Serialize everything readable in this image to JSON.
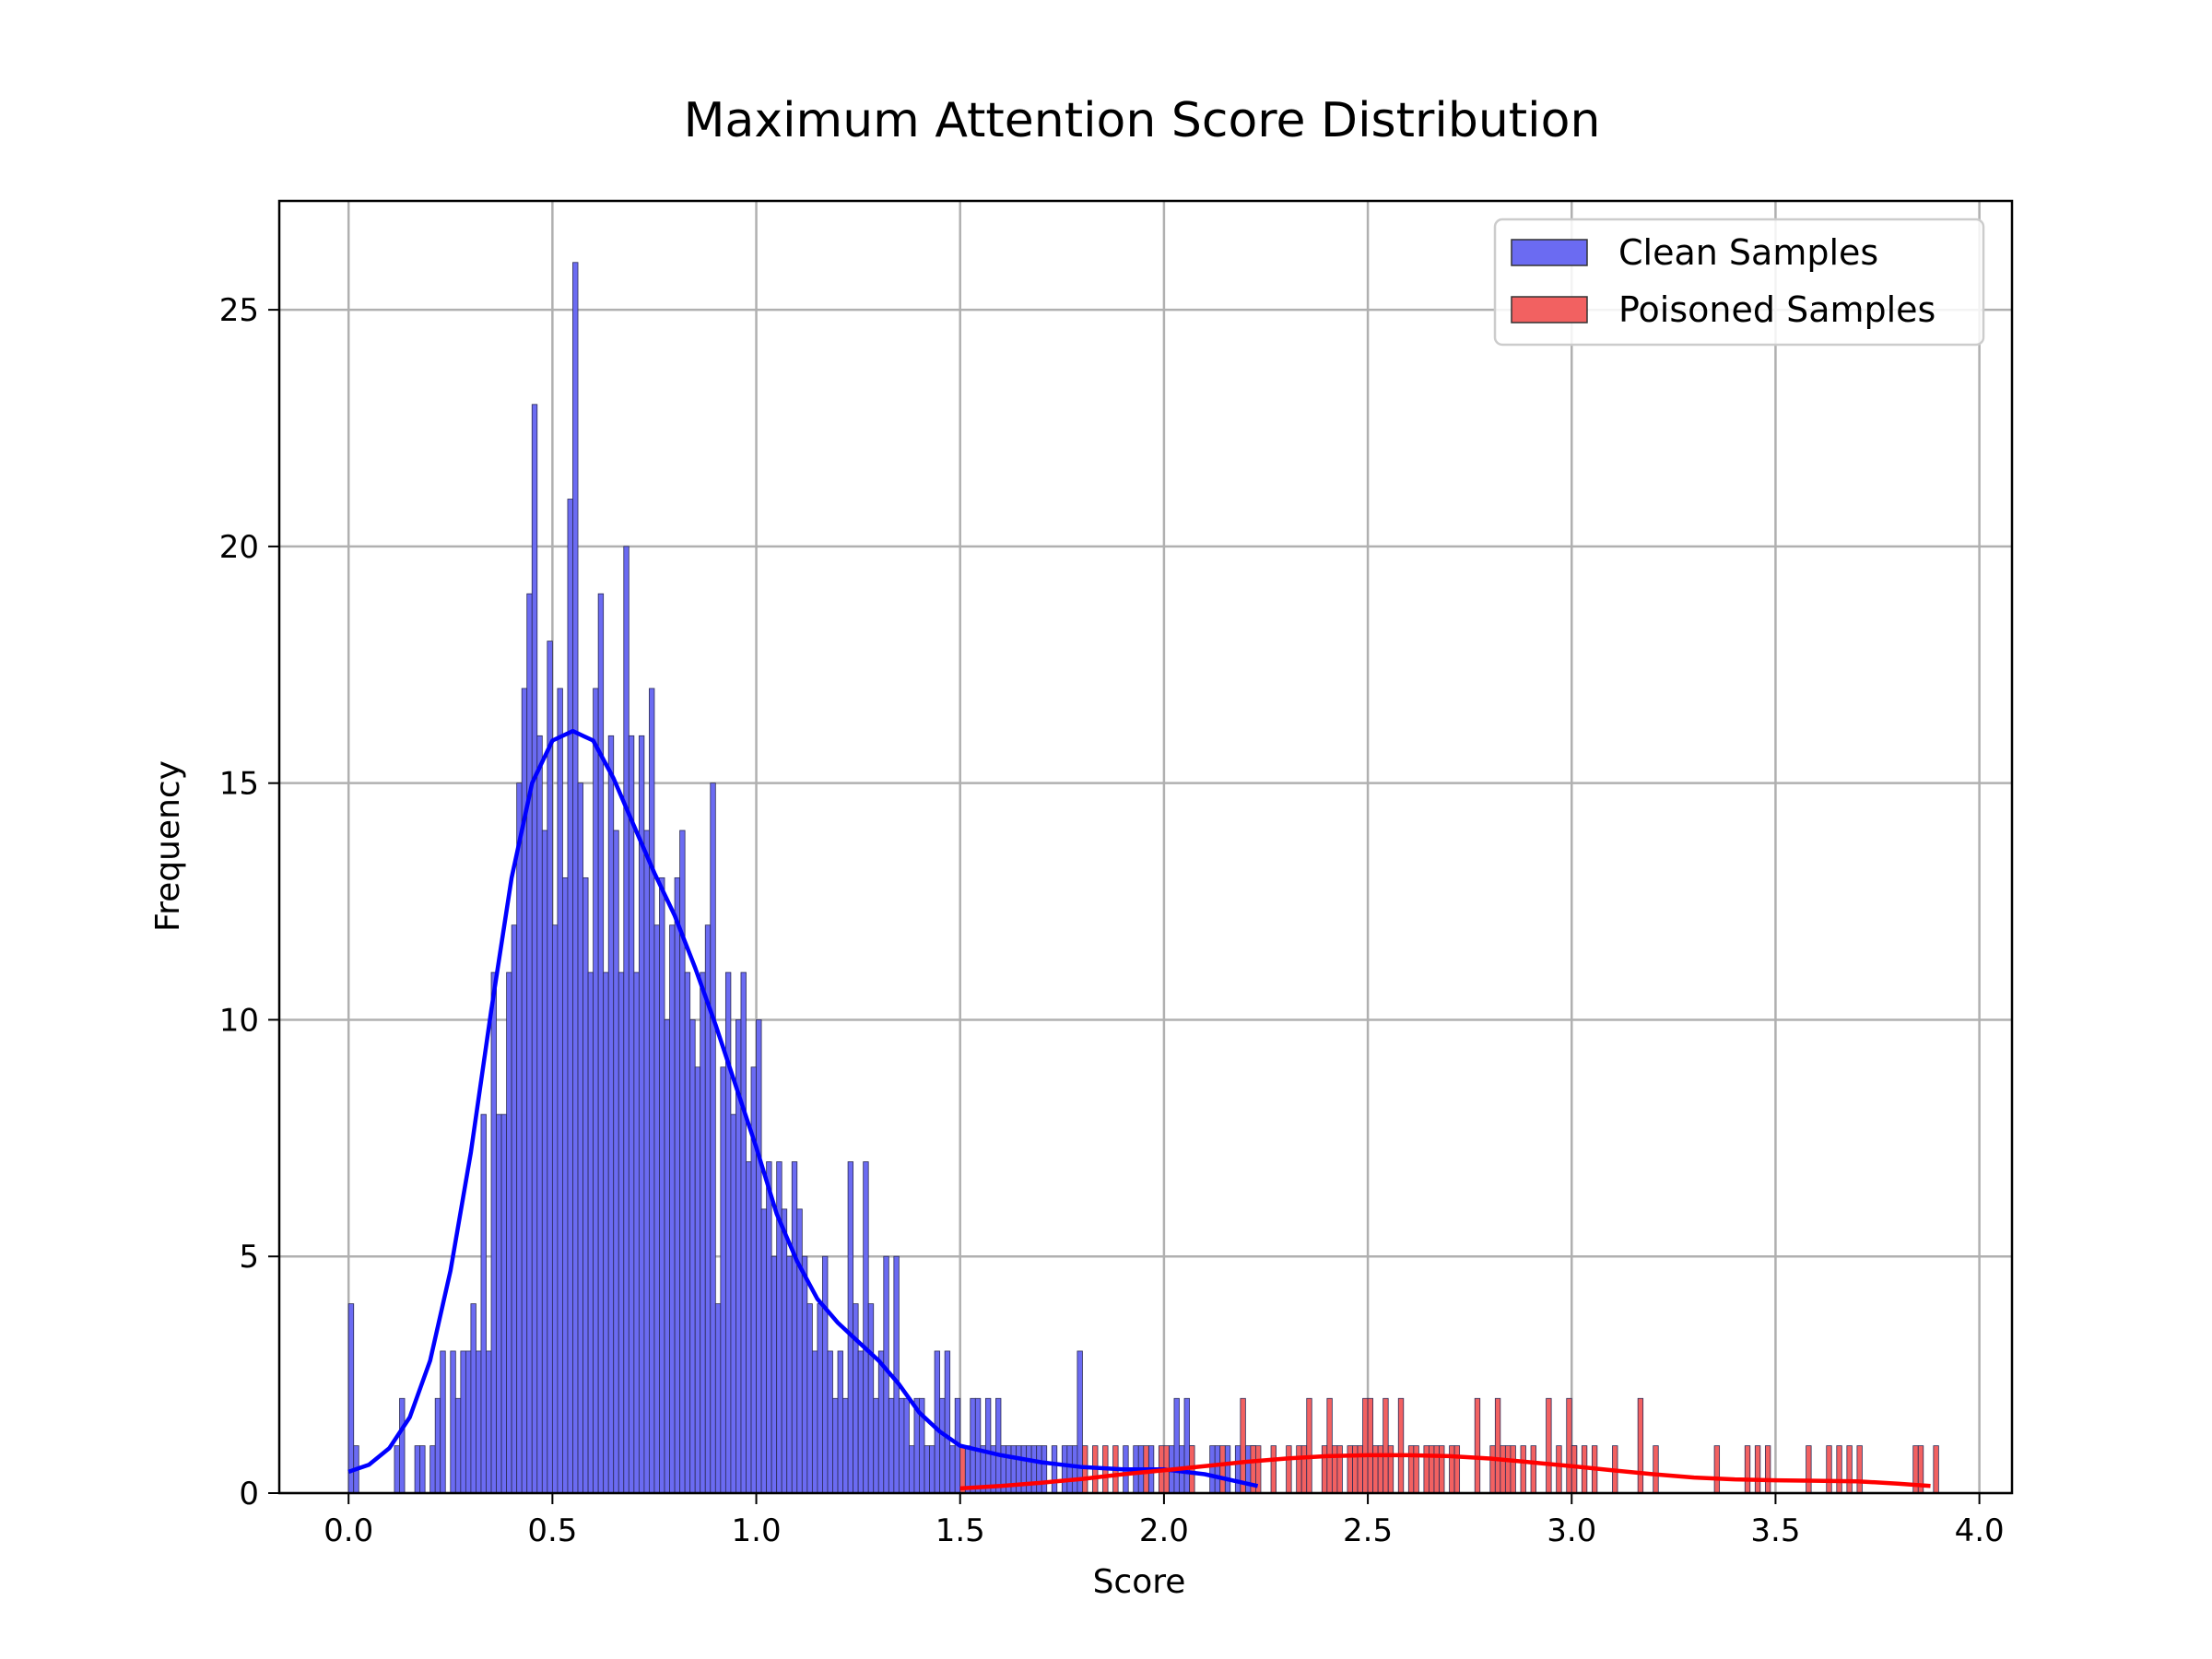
{
  "chart_data": {
    "type": "histogram",
    "title": "Maximum Attention Score Distribution",
    "xlabel": "Score",
    "ylabel": "Frequency",
    "xlim": [
      -0.17,
      4.08
    ],
    "ylim": [
      0,
      27.3
    ],
    "xticks": [
      "0.0",
      "0.5",
      "1.0",
      "1.5",
      "2.0",
      "2.5",
      "3.0",
      "3.5",
      "4.0"
    ],
    "yticks": [
      "0",
      "5",
      "10",
      "15",
      "20",
      "25"
    ],
    "grid": true,
    "legend_position": "top-right",
    "bin_width": 0.0125,
    "series": [
      {
        "name": "Clean Samples",
        "color": "#6b6bf2",
        "kde_color": "#0000ff",
        "bins": [
          [
            0.0,
            4
          ],
          [
            0.0125,
            1
          ],
          [
            0.1125,
            1
          ],
          [
            0.125,
            2
          ],
          [
            0.1625,
            1
          ],
          [
            0.175,
            1
          ],
          [
            0.2,
            1
          ],
          [
            0.2125,
            2
          ],
          [
            0.225,
            3
          ],
          [
            0.25,
            3
          ],
          [
            0.2625,
            2
          ],
          [
            0.275,
            3
          ],
          [
            0.2875,
            3
          ],
          [
            0.3,
            4
          ],
          [
            0.3125,
            3
          ],
          [
            0.325,
            8
          ],
          [
            0.3375,
            3
          ],
          [
            0.35,
            11
          ],
          [
            0.3625,
            8
          ],
          [
            0.375,
            8
          ],
          [
            0.3875,
            11
          ],
          [
            0.4,
            12
          ],
          [
            0.4125,
            15
          ],
          [
            0.425,
            17
          ],
          [
            0.4375,
            19
          ],
          [
            0.45,
            23
          ],
          [
            0.4625,
            16
          ],
          [
            0.475,
            14
          ],
          [
            0.4875,
            18
          ],
          [
            0.5,
            12
          ],
          [
            0.5125,
            17
          ],
          [
            0.525,
            13
          ],
          [
            0.5375,
            21
          ],
          [
            0.55,
            26
          ],
          [
            0.5625,
            15
          ],
          [
            0.575,
            13
          ],
          [
            0.5875,
            11
          ],
          [
            0.6,
            17
          ],
          [
            0.6125,
            19
          ],
          [
            0.625,
            11
          ],
          [
            0.6375,
            16
          ],
          [
            0.65,
            14
          ],
          [
            0.6625,
            11
          ],
          [
            0.675,
            20
          ],
          [
            0.6875,
            16
          ],
          [
            0.7,
            11
          ],
          [
            0.7125,
            16
          ],
          [
            0.725,
            14
          ],
          [
            0.7375,
            17
          ],
          [
            0.75,
            12
          ],
          [
            0.7625,
            13
          ],
          [
            0.775,
            10
          ],
          [
            0.7875,
            12
          ],
          [
            0.8,
            13
          ],
          [
            0.8125,
            14
          ],
          [
            0.825,
            11
          ],
          [
            0.8375,
            10
          ],
          [
            0.85,
            9
          ],
          [
            0.8625,
            11
          ],
          [
            0.875,
            12
          ],
          [
            0.8875,
            15
          ],
          [
            0.9,
            4
          ],
          [
            0.9125,
            9
          ],
          [
            0.925,
            11
          ],
          [
            0.9375,
            8
          ],
          [
            0.95,
            10
          ],
          [
            0.9625,
            11
          ],
          [
            0.975,
            7
          ],
          [
            0.9875,
            9
          ],
          [
            1.0,
            10
          ],
          [
            1.0125,
            6
          ],
          [
            1.025,
            7
          ],
          [
            1.0375,
            5
          ],
          [
            1.05,
            7
          ],
          [
            1.0625,
            6
          ],
          [
            1.075,
            5
          ],
          [
            1.0875,
            7
          ],
          [
            1.1,
            6
          ],
          [
            1.1125,
            5
          ],
          [
            1.125,
            4
          ],
          [
            1.1375,
            3
          ],
          [
            1.15,
            4
          ],
          [
            1.1625,
            5
          ],
          [
            1.175,
            3
          ],
          [
            1.1875,
            2
          ],
          [
            1.2,
            3
          ],
          [
            1.2125,
            2
          ],
          [
            1.225,
            7
          ],
          [
            1.2375,
            4
          ],
          [
            1.25,
            3
          ],
          [
            1.2625,
            7
          ],
          [
            1.275,
            4
          ],
          [
            1.2875,
            2
          ],
          [
            1.3,
            3
          ],
          [
            1.3125,
            5
          ],
          [
            1.325,
            2
          ],
          [
            1.3375,
            5
          ],
          [
            1.35,
            2
          ],
          [
            1.3625,
            2
          ],
          [
            1.375,
            1
          ],
          [
            1.3875,
            2
          ],
          [
            1.4,
            2
          ],
          [
            1.4125,
            1
          ],
          [
            1.425,
            1
          ],
          [
            1.4375,
            3
          ],
          [
            1.45,
            2
          ],
          [
            1.4625,
            3
          ],
          [
            1.475,
            1
          ],
          [
            1.4875,
            2
          ],
          [
            1.5125,
            1
          ],
          [
            1.525,
            2
          ],
          [
            1.5375,
            2
          ],
          [
            1.55,
            1
          ],
          [
            1.5625,
            2
          ],
          [
            1.575,
            1
          ],
          [
            1.5875,
            2
          ],
          [
            1.6,
            1
          ],
          [
            1.6125,
            1
          ],
          [
            1.625,
            1
          ],
          [
            1.6375,
            1
          ],
          [
            1.65,
            1
          ],
          [
            1.6625,
            1
          ],
          [
            1.675,
            1
          ],
          [
            1.6875,
            1
          ],
          [
            1.7,
            1
          ],
          [
            1.725,
            1
          ],
          [
            1.75,
            1
          ],
          [
            1.7625,
            1
          ],
          [
            1.775,
            1
          ],
          [
            1.7875,
            3
          ],
          [
            1.9,
            1
          ],
          [
            1.925,
            1
          ],
          [
            1.9375,
            1
          ],
          [
            1.9625,
            1
          ],
          [
            2.0125,
            1
          ],
          [
            2.025,
            2
          ],
          [
            2.0375,
            1
          ],
          [
            2.05,
            2
          ],
          [
            2.0625,
            1
          ],
          [
            2.1125,
            1
          ],
          [
            2.125,
            1
          ],
          [
            2.15,
            1
          ],
          [
            2.175,
            1
          ],
          [
            2.2,
            1
          ],
          [
            2.2125,
            1
          ]
        ],
        "kde": [
          [
            0.0,
            0.45
          ],
          [
            0.05,
            0.6
          ],
          [
            0.1,
            0.95
          ],
          [
            0.15,
            1.6
          ],
          [
            0.2,
            2.8
          ],
          [
            0.25,
            4.7
          ],
          [
            0.3,
            7.2
          ],
          [
            0.35,
            10.2
          ],
          [
            0.4,
            13.0
          ],
          [
            0.45,
            15.0
          ],
          [
            0.5,
            15.9
          ],
          [
            0.55,
            16.1
          ],
          [
            0.6,
            15.9
          ],
          [
            0.65,
            15.1
          ],
          [
            0.7,
            14.1
          ],
          [
            0.75,
            13.1
          ],
          [
            0.8,
            12.2
          ],
          [
            0.85,
            11.1
          ],
          [
            0.9,
            9.9
          ],
          [
            0.95,
            8.6
          ],
          [
            1.0,
            7.3
          ],
          [
            1.05,
            5.9
          ],
          [
            1.1,
            4.9
          ],
          [
            1.15,
            4.1
          ],
          [
            1.2,
            3.6
          ],
          [
            1.25,
            3.2
          ],
          [
            1.3,
            2.8
          ],
          [
            1.35,
            2.3
          ],
          [
            1.4,
            1.7
          ],
          [
            1.45,
            1.3
          ],
          [
            1.5,
            1.0
          ],
          [
            1.6,
            0.8
          ],
          [
            1.7,
            0.65
          ],
          [
            1.8,
            0.55
          ],
          [
            1.9,
            0.5
          ],
          [
            2.0,
            0.5
          ],
          [
            2.1,
            0.4
          ],
          [
            2.23,
            0.15
          ]
        ]
      },
      {
        "name": "Poisoned Samples",
        "color": "#f26161",
        "kde_color": "#ff0000",
        "bins": [
          [
            1.5,
            1
          ],
          [
            1.8,
            1
          ],
          [
            1.825,
            1
          ],
          [
            1.85,
            1
          ],
          [
            1.875,
            1
          ],
          [
            1.95,
            1
          ],
          [
            1.9875,
            1
          ],
          [
            2.0,
            1
          ],
          [
            2.0625,
            1
          ],
          [
            2.1375,
            1
          ],
          [
            2.1875,
            2
          ],
          [
            2.2125,
            1
          ],
          [
            2.225,
            1
          ],
          [
            2.2625,
            1
          ],
          [
            2.3,
            1
          ],
          [
            2.325,
            1
          ],
          [
            2.3375,
            1
          ],
          [
            2.35,
            2
          ],
          [
            2.3875,
            1
          ],
          [
            2.4,
            2
          ],
          [
            2.4125,
            1
          ],
          [
            2.425,
            1
          ],
          [
            2.45,
            1
          ],
          [
            2.4625,
            1
          ],
          [
            2.475,
            1
          ],
          [
            2.4875,
            2
          ],
          [
            2.5,
            2
          ],
          [
            2.5125,
            1
          ],
          [
            2.525,
            1
          ],
          [
            2.5375,
            2
          ],
          [
            2.55,
            1
          ],
          [
            2.575,
            2
          ],
          [
            2.6,
            1
          ],
          [
            2.6125,
            1
          ],
          [
            2.6375,
            1
          ],
          [
            2.65,
            1
          ],
          [
            2.6625,
            1
          ],
          [
            2.675,
            1
          ],
          [
            2.7,
            1
          ],
          [
            2.7125,
            1
          ],
          [
            2.7625,
            2
          ],
          [
            2.8,
            1
          ],
          [
            2.8125,
            2
          ],
          [
            2.825,
            1
          ],
          [
            2.8375,
            1
          ],
          [
            2.85,
            1
          ],
          [
            2.875,
            1
          ],
          [
            2.9,
            1
          ],
          [
            2.9375,
            2
          ],
          [
            2.9625,
            1
          ],
          [
            2.9875,
            2
          ],
          [
            3.0,
            1
          ],
          [
            3.0,
            1
          ],
          [
            3.025,
            1
          ],
          [
            3.05,
            1
          ],
          [
            3.1,
            1
          ],
          [
            3.1625,
            2
          ],
          [
            3.2,
            1
          ],
          [
            3.35,
            1
          ],
          [
            3.425,
            1
          ],
          [
            3.45,
            1
          ],
          [
            3.475,
            1
          ],
          [
            3.575,
            1
          ],
          [
            3.625,
            1
          ],
          [
            3.65,
            1
          ],
          [
            3.675,
            1
          ],
          [
            3.7,
            1
          ],
          [
            3.8375,
            1
          ],
          [
            3.85,
            1
          ],
          [
            3.8875,
            1
          ]
        ],
        "kde": [
          [
            1.5,
            0.1
          ],
          [
            1.6,
            0.15
          ],
          [
            1.7,
            0.22
          ],
          [
            1.8,
            0.3
          ],
          [
            1.9,
            0.4
          ],
          [
            2.0,
            0.48
          ],
          [
            2.1,
            0.57
          ],
          [
            2.2,
            0.66
          ],
          [
            2.3,
            0.73
          ],
          [
            2.4,
            0.78
          ],
          [
            2.5,
            0.8
          ],
          [
            2.6,
            0.8
          ],
          [
            2.7,
            0.78
          ],
          [
            2.8,
            0.73
          ],
          [
            2.9,
            0.65
          ],
          [
            3.0,
            0.57
          ],
          [
            3.1,
            0.48
          ],
          [
            3.2,
            0.4
          ],
          [
            3.3,
            0.33
          ],
          [
            3.4,
            0.29
          ],
          [
            3.5,
            0.27
          ],
          [
            3.6,
            0.26
          ],
          [
            3.7,
            0.25
          ],
          [
            3.8,
            0.2
          ],
          [
            3.88,
            0.15
          ]
        ]
      }
    ]
  }
}
